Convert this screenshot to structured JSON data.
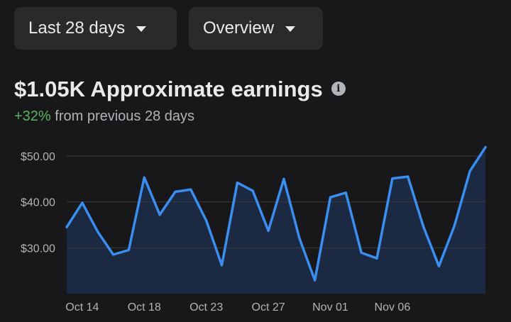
{
  "filters": {
    "range_label": "Last 28 days",
    "view_label": "Overview"
  },
  "summary": {
    "title": "$1.05K Approximate earnings",
    "change_pct": "+32%",
    "change_text": " from previous 28 days"
  },
  "colors": {
    "line": "#3a8ef0",
    "area": "#1b2942",
    "positive": "#58b45e"
  },
  "icons": {
    "info": "info-icon",
    "dropdown": "caret-down-icon"
  },
  "chart_data": {
    "type": "area",
    "ylim": [
      20,
      52
    ],
    "yticks": [
      30,
      40,
      50
    ],
    "ytick_labels": [
      "$30.00",
      "$40.00",
      "$50.00"
    ],
    "grid": true,
    "xtick_labels": [
      "Oct 14",
      "Oct 18",
      "Oct 23",
      "Oct 27",
      "Nov 01",
      "Nov 06"
    ],
    "xtick_index": [
      1,
      5,
      9,
      13,
      17,
      21
    ],
    "values": [
      34.5,
      39.8,
      33.5,
      28.5,
      29.5,
      45.3,
      37.2,
      42.2,
      42.7,
      35.9,
      26.2,
      44.2,
      42.4,
      33.7,
      45.0,
      32.1,
      22.9,
      41.0,
      42.0,
      28.9,
      27.7,
      45.1,
      45.5,
      34.6,
      26.0,
      34.8,
      46.7,
      51.9
    ]
  }
}
